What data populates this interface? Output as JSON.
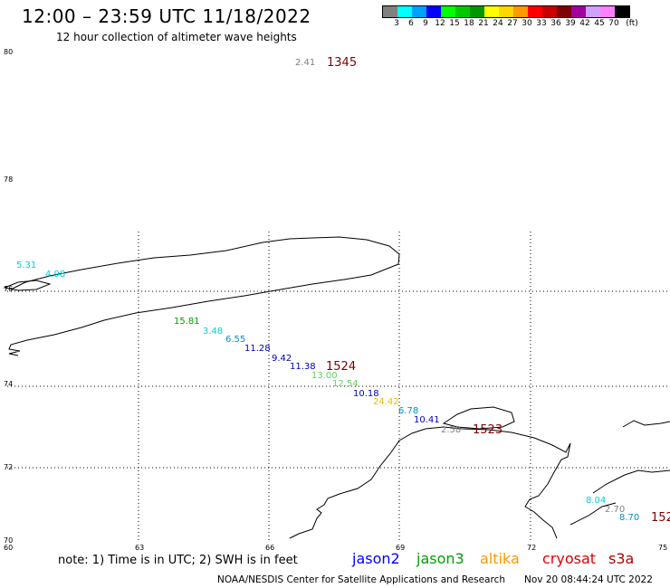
{
  "header": {
    "title": "12:00 – 23:59 UTC 11/18/2022",
    "subtitle": "12 hour collection of altimeter wave heights"
  },
  "legend": {
    "swatches": [
      "#808080",
      "#00ffff",
      "#00a0ff",
      "#0000ff",
      "#00ff00",
      "#00c800",
      "#009600",
      "#ffff00",
      "#ffd700",
      "#ff9900",
      "#ff0000",
      "#c80000",
      "#800000",
      "#a000a0",
      "#d0a0ff",
      "#ff80ff",
      "#000000"
    ],
    "labels": [
      "3",
      "6",
      "9",
      "12",
      "15",
      "18",
      "21",
      "24",
      "27",
      "30",
      "33",
      "36",
      "39",
      "42",
      "45",
      "70"
    ],
    "unit": "(ft)"
  },
  "axes": {
    "lat_labels": [
      "80",
      "78",
      "76",
      "74",
      "72",
      "70"
    ],
    "lon_labels": [
      "60",
      "63",
      "66",
      "69",
      "72",
      "75"
    ]
  },
  "tracks": [
    {
      "times": "1345",
      "color": "#800000",
      "values": [
        {
          "v": "2.41",
          "color": "#808080"
        }
      ]
    },
    {
      "times": "1524",
      "color": "#800000",
      "values": [
        {
          "v": "5.31",
          "color": "#00d0d0"
        },
        {
          "v": "4.98",
          "color": "#00d0d0"
        },
        {
          "v": "15.81",
          "color": "#00a000"
        },
        {
          "v": "3.48",
          "color": "#00d0d0"
        },
        {
          "v": "6.55",
          "color": "#0090d0"
        },
        {
          "v": "11.28",
          "color": "#0000c0"
        },
        {
          "v": "9.42",
          "color": "#0000c0"
        },
        {
          "v": "11.38",
          "color": "#0000c0"
        },
        {
          "v": "13.00",
          "color": "#60d060"
        },
        {
          "v": "12.54",
          "color": "#60d060"
        },
        {
          "v": "10.18",
          "color": "#0000c0"
        },
        {
          "v": "24.42",
          "color": "#e0c000"
        },
        {
          "v": "6.78",
          "color": "#0090d0"
        },
        {
          "v": "10.41",
          "color": "#0000c0"
        },
        {
          "v": "2.58",
          "color": "#808080"
        }
      ]
    },
    {
      "times": "1523",
      "color": "#800000",
      "values": []
    },
    {
      "times": "152",
      "color": "#800000",
      "values": [
        {
          "v": "8.04",
          "color": "#00d0d0"
        },
        {
          "v": "2.70",
          "color": "#808080"
        },
        {
          "v": "8.70",
          "color": "#0090d0"
        }
      ]
    }
  ],
  "footer": {
    "note": "note: 1) Time is in UTC; 2) SWH is in feet",
    "satellites": [
      {
        "name": "jason2",
        "color": "#0000ff"
      },
      {
        "name": "jason3",
        "color": "#00a000"
      },
      {
        "name": "altika",
        "color": "#ff9900"
      },
      {
        "name": "cryosat",
        "color": "#e00000"
      },
      {
        "name": "s3a",
        "color": "#b00000"
      }
    ],
    "credit": "NOAA/NESDIS Center for Satellite Applications and Research",
    "timestamp": "Nov 20 08:44:24 UTC 2022"
  }
}
